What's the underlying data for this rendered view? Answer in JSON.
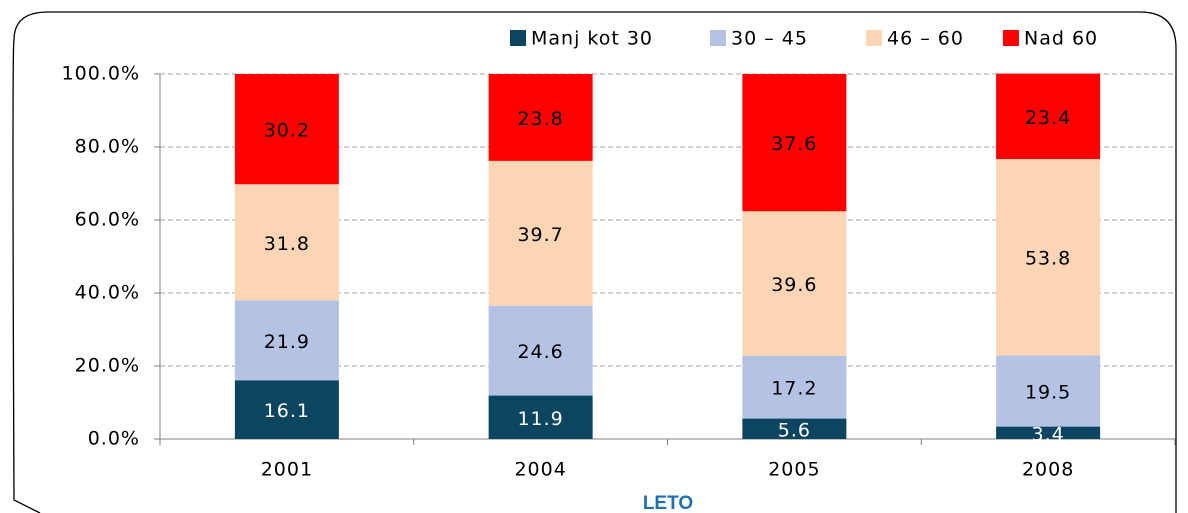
{
  "chart_data": {
    "type": "stacked_bar",
    "x_label": "LETO",
    "categories": [
      "2001",
      "2004",
      "2005",
      "2008"
    ],
    "series": [
      {
        "name": "Manj kot 30",
        "color": "#0b4560",
        "values": [
          16.1,
          11.9,
          5.6,
          3.4
        ]
      },
      {
        "name": "30 – 45",
        "color": "#b4c3e4",
        "values": [
          21.9,
          24.6,
          17.2,
          19.5
        ]
      },
      {
        "name": "46 – 60",
        "color": "#fcd5b4",
        "values": [
          31.8,
          39.7,
          39.6,
          53.8
        ]
      },
      {
        "name": "Nad 60",
        "color": "#ff0000",
        "values": [
          30.2,
          23.8,
          37.6,
          23.4
        ]
      }
    ],
    "ylim": [
      0,
      100
    ],
    "yticks": [
      {
        "value": 0,
        "label": "0.0%"
      },
      {
        "value": 20,
        "label": "20.0%"
      },
      {
        "value": 40,
        "label": "40.0%"
      },
      {
        "value": 60,
        "label": "60.0%"
      },
      {
        "value": 80,
        "label": "80.0%"
      },
      {
        "value": 100,
        "label": "100.0%"
      }
    ],
    "grid": true,
    "legend": "top"
  }
}
